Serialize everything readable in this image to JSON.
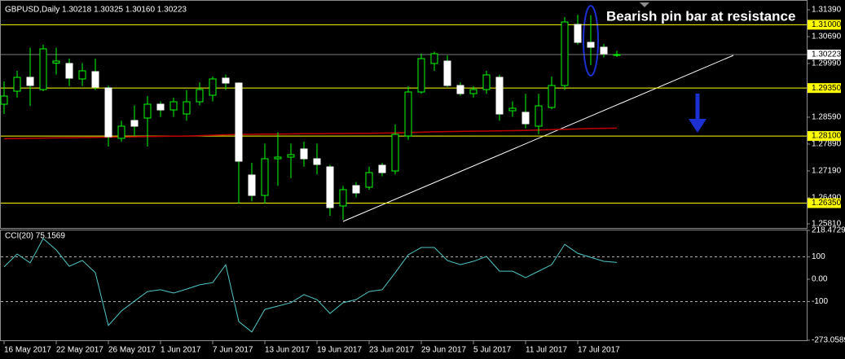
{
  "chart_data": [
    {
      "type": "candlestick",
      "header": "GBPUSD,Daily  1.30218 1.30325 1.30160 1.30223",
      "annotation": "Bearish pin bar at resistance",
      "categories": [
        "16 May 2017",
        null,
        null,
        null,
        "22 May 2017",
        null,
        null,
        null,
        "26 May 2017",
        null,
        null,
        null,
        "1 Jun 2017",
        null,
        null,
        null,
        "7 Jun 2017",
        null,
        null,
        null,
        "13 Jun 2017",
        null,
        null,
        null,
        "19 Jun 2017",
        null,
        null,
        null,
        "23 Jun 2017",
        null,
        null,
        null,
        "29 Jun 2017",
        null,
        null,
        null,
        "5 Jul 2017",
        null,
        null,
        null,
        "11 Jul 2017",
        null,
        null,
        null,
        "17 Jul 2017",
        null,
        null,
        null
      ],
      "open": [
        1.28929,
        1.29268,
        1.29629,
        1.29311,
        1.3,
        1.2999,
        1.29587,
        1.29777,
        1.29353,
        1.28038,
        1.28504,
        1.28568,
        1.28929,
        1.2878,
        1.28674,
        1.28992,
        1.29162,
        1.29608,
        1.2948,
        1.27083,
        1.26552,
        1.27507,
        1.2755,
        1.27762,
        1.27507,
        1.27295,
        1.26277,
        1.26807,
        1.26765,
        1.27337,
        1.27189,
        1.28101,
        1.29247,
        1.2999,
        1.30053,
        1.29417,
        1.29205,
        1.29311,
        1.29629,
        1.28759,
        1.28717,
        1.28356,
        1.28844,
        1.29417,
        1.31008,
        1.30541,
        1.30414,
        1.30218
      ],
      "high": [
        1.29523,
        1.298,
        1.304,
        1.3048,
        1.304,
        1.3012,
        1.3,
        1.30117,
        1.29417,
        1.285,
        1.289,
        1.29141,
        1.29,
        1.291,
        1.293,
        1.295,
        1.2965,
        1.297,
        1.295,
        1.274,
        1.279,
        1.282,
        1.279,
        1.2795,
        1.279,
        1.2735,
        1.268,
        1.269,
        1.273,
        1.274,
        1.284,
        1.294,
        1.3025,
        1.303,
        1.302,
        1.295,
        1.294,
        1.298,
        1.297,
        1.29,
        1.292,
        1.292,
        1.2965,
        1.312,
        1.3126,
        1.3125,
        1.305,
        1.30325
      ],
      "low": [
        1.28674,
        1.291,
        1.2888,
        1.29268,
        1.297,
        1.294,
        1.294,
        1.293,
        1.27826,
        1.2795,
        1.281,
        1.27826,
        1.286,
        1.286,
        1.285,
        1.289,
        1.29,
        1.293,
        1.2634,
        1.264,
        1.2634,
        1.268,
        1.27,
        1.273,
        1.271,
        1.26022,
        1.25916,
        1.265,
        1.267,
        1.2705,
        1.271,
        1.28,
        1.292,
        1.298,
        1.2938,
        1.2915,
        1.291,
        1.292,
        1.285,
        1.286,
        1.283,
        1.28144,
        1.288,
        1.293,
        1.3048,
        1.2995,
        1.3015,
        1.3016
      ],
      "close": [
        1.29141,
        1.29629,
        1.29417,
        1.30372,
        1.30053,
        1.29608,
        1.29799,
        1.29374,
        1.2808,
        1.28356,
        1.28356,
        1.28929,
        1.2878,
        1.28992,
        1.28992,
        1.29311,
        1.29587,
        1.2948,
        1.27444,
        1.26552,
        1.27507,
        1.2755,
        1.27613,
        1.27507,
        1.27359,
        1.26234,
        1.26701,
        1.26616,
        1.27146,
        1.27146,
        1.28144,
        1.29247,
        1.30117,
        1.30244,
        1.29417,
        1.29205,
        1.29311,
        1.29693,
        1.28674,
        1.28823,
        1.2842,
        1.28886,
        1.29417,
        1.31072,
        1.30541,
        1.30414,
        1.30244,
        1.30223
      ],
      "up_color": "#00ff00",
      "down_color": "#ffffff",
      "ma": {
        "color": "#c00000",
        "values": [
          1.2803,
          1.28035,
          1.2804,
          1.28045,
          1.2805,
          1.28055,
          1.2806,
          1.28065,
          1.2807,
          1.28075,
          1.2808,
          1.28085,
          1.2809,
          1.28095,
          1.281,
          1.2811,
          1.2812,
          1.2813,
          1.2814,
          1.28145,
          1.2815,
          1.2815,
          1.28155,
          1.2816,
          1.2816,
          1.28165,
          1.28165,
          1.2817,
          1.2817,
          1.28175,
          1.2818,
          1.2819,
          1.282,
          1.2821,
          1.28215,
          1.2822,
          1.28225,
          1.2823,
          1.28235,
          1.2824,
          1.28245,
          1.28255,
          1.28265,
          1.28275,
          1.28285,
          1.28295,
          1.283,
          1.28305
        ]
      },
      "levels": {
        "color": "#ffff00",
        "values": [
          {
            "value": 1.31,
            "label": "1.31000"
          },
          {
            "value": 1.2935,
            "label": "1.29350"
          },
          {
            "value": 1.281,
            "label": "1.28100"
          },
          {
            "value": 1.2635,
            "label": "1.26350"
          }
        ]
      },
      "last_price": {
        "value": 1.30223,
        "label": "1.30223"
      },
      "ylim": [
        1.25704,
        1.31581
      ],
      "yticks": [
        {
          "value": 1.3139,
          "label": "1.31390"
        },
        {
          "value": 1.3069,
          "label": "1.30690"
        },
        {
          "value": 1.2999,
          "label": "1.29990"
        },
        {
          "value": 1.2929,
          "label": "1.29290"
        },
        {
          "value": 1.2859,
          "label": "1.28590"
        },
        {
          "value": 1.2789,
          "label": "1.27890"
        },
        {
          "value": 1.2719,
          "label": "1.27190"
        },
        {
          "value": 1.2649,
          "label": "1.26490"
        },
        {
          "value": 1.2581,
          "label": "1.25810"
        }
      ]
    },
    {
      "type": "line",
      "title": "CCI(20) 75.1569",
      "series": [
        {
          "color": "#4fc8c8",
          "values": [
            55,
            113,
            73,
            182,
            131,
            58,
            84,
            29,
            -207,
            -142,
            -98,
            -55,
            -47,
            -62,
            -44,
            -25,
            -15,
            65,
            -189,
            -236,
            -135,
            -120,
            -105,
            -69,
            -91,
            -153,
            -105,
            -91,
            -55,
            -47,
            29,
            109,
            142,
            142,
            84,
            65,
            80,
            102,
            36,
            36,
            7,
            36,
            65,
            156,
            116,
            98,
            80,
            75.1569
          ]
        }
      ],
      "ylim": [
        -273.0589,
        218.4729
      ],
      "yticks": [
        218.4729,
        100,
        {
          "value": 0,
          "label": "0.00"
        },
        -100,
        -273.0589
      ]
    }
  ]
}
